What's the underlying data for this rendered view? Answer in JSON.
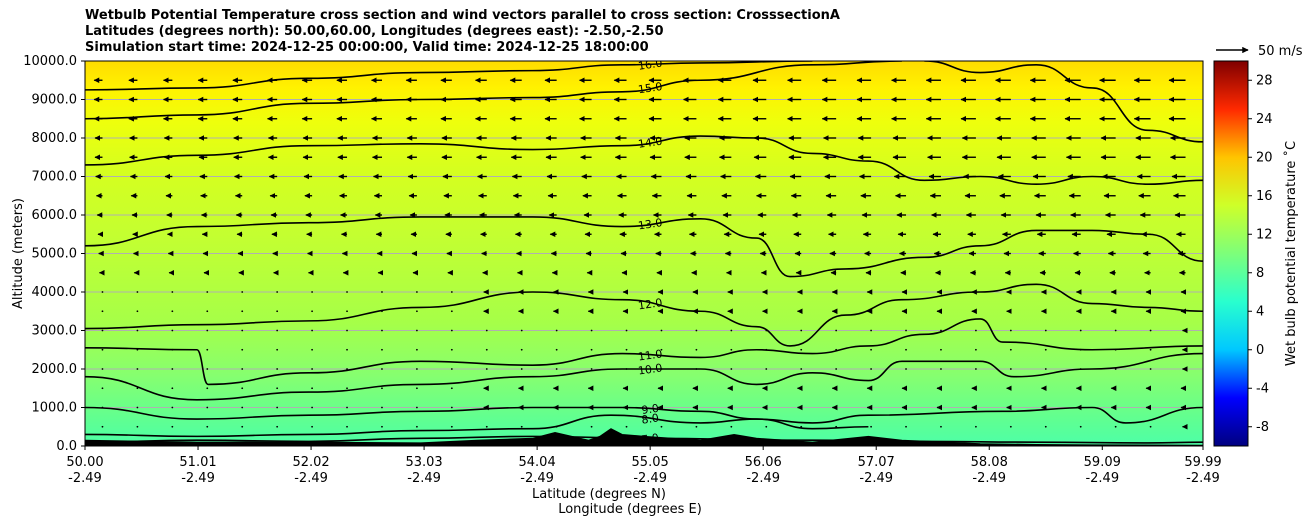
{
  "chart_data": {
    "type": "heatmap",
    "title_lines": [
      "Wetbulb Potential Temperature cross section and wind vectors parallel to cross section: CrosssectionA",
      "Latitudes (degrees north): 50.00,60.00, Longitudes (degrees east): -2.50,-2.50",
      "Simulation start time: 2024-12-25 00:00:00, Valid time: 2024-12-25 18:00:00"
    ],
    "xlabel_lat": "Latitude (degrees N)",
    "xlabel_lon": "Longitude (degrees E)",
    "ylabel": "Altitude (meters)",
    "x_ticks_lat": [
      "50.00",
      "51.01",
      "52.02",
      "53.03",
      "54.04",
      "55.05",
      "56.06",
      "57.07",
      "58.08",
      "59.09",
      "59.99"
    ],
    "x_ticks_lon": [
      "-2.49",
      "-2.49",
      "-2.49",
      "-2.49",
      "-2.49",
      "-2.49",
      "-2.49",
      "-2.49",
      "-2.49",
      "-2.49",
      "-2.49"
    ],
    "x_range": [
      50.0,
      59.99
    ],
    "y_ticks": [
      "0.0",
      "1000.0",
      "2000.0",
      "3000.0",
      "4000.0",
      "5000.0",
      "6000.0",
      "7000.0",
      "8000.0",
      "9000.0",
      "10000.0"
    ],
    "y_range": [
      0,
      10000
    ],
    "grid": "horizontal",
    "colorbar": {
      "label": "Wet bulb potential temperature ˚C",
      "ticks": [
        "-8",
        "-4",
        "0",
        "4",
        "8",
        "12",
        "16",
        "20",
        "24",
        "28"
      ],
      "range": [
        -10,
        30
      ]
    },
    "quiver_key": "50 m/s",
    "contour_labels": [
      "16.0",
      "15.0",
      "14.0",
      "13.0",
      "12.0",
      "11.0",
      "10.0",
      "9.0",
      "8.0",
      "7.0"
    ],
    "contours": [
      {
        "level": 16,
        "label": "16.0",
        "points": [
          [
            50.0,
            9250
          ],
          [
            51.0,
            9300
          ],
          [
            52.0,
            9550
          ],
          [
            53.0,
            9700
          ],
          [
            54.0,
            9750
          ],
          [
            54.8,
            9900
          ],
          [
            55.5,
            9950
          ],
          [
            56.5,
            10000
          ]
        ]
      },
      {
        "level": 15,
        "label": "15.0",
        "points": [
          [
            50.0,
            8500
          ],
          [
            51.0,
            8600
          ],
          [
            52.0,
            8900
          ],
          [
            53.0,
            9000
          ],
          [
            54.0,
            9050
          ],
          [
            54.8,
            9200
          ],
          [
            55.5,
            9500
          ],
          [
            56.5,
            9900
          ],
          [
            57.3,
            10000
          ]
        ]
      },
      {
        "level": 15,
        "label": "15.0",
        "points": [
          [
            57.5,
            10000
          ],
          [
            58.0,
            9700
          ],
          [
            58.5,
            9900
          ],
          [
            59.0,
            9300
          ],
          [
            59.5,
            8200
          ],
          [
            59.99,
            7900
          ]
        ]
      },
      {
        "level": 14,
        "label": "14.0",
        "points": [
          [
            50.0,
            7300
          ],
          [
            51.0,
            7550
          ],
          [
            52.0,
            7800
          ],
          [
            53.0,
            7850
          ],
          [
            54.0,
            7700
          ],
          [
            54.8,
            7800
          ],
          [
            55.5,
            8050
          ],
          [
            56.0,
            8000
          ],
          [
            56.5,
            7600
          ],
          [
            57.0,
            7400
          ],
          [
            57.5,
            6900
          ],
          [
            58.0,
            7000
          ],
          [
            58.5,
            6800
          ],
          [
            59.0,
            7000
          ],
          [
            59.5,
            6800
          ],
          [
            59.99,
            6900
          ]
        ]
      },
      {
        "level": 13,
        "label": "13.0",
        "points": [
          [
            50.0,
            5200
          ],
          [
            51.0,
            5700
          ],
          [
            52.0,
            5800
          ],
          [
            53.0,
            5950
          ],
          [
            54.0,
            5950
          ],
          [
            54.8,
            5700
          ],
          [
            55.5,
            5900
          ],
          [
            56.0,
            5400
          ],
          [
            56.3,
            4400
          ],
          [
            56.8,
            4600
          ],
          [
            57.5,
            4900
          ],
          [
            58.0,
            5200
          ],
          [
            58.5,
            5600
          ],
          [
            59.0,
            5600
          ],
          [
            59.5,
            5500
          ],
          [
            59.99,
            4800
          ]
        ]
      },
      {
        "level": 12,
        "label": "12.0",
        "points": [
          [
            50.0,
            3050
          ],
          [
            51.0,
            3150
          ],
          [
            52.0,
            3250
          ],
          [
            53.0,
            3600
          ],
          [
            54.0,
            4000
          ],
          [
            54.8,
            3800
          ],
          [
            55.5,
            3500
          ],
          [
            56.0,
            3100
          ],
          [
            56.3,
            2600
          ],
          [
            56.8,
            3400
          ],
          [
            57.3,
            3800
          ],
          [
            58.0,
            4000
          ],
          [
            58.5,
            4200
          ],
          [
            59.0,
            3700
          ],
          [
            59.5,
            3600
          ],
          [
            59.99,
            3500
          ]
        ]
      },
      {
        "level": 11,
        "label": "11.0",
        "points": [
          [
            50.0,
            2550
          ],
          [
            51.0,
            2500
          ],
          [
            51.1,
            1600
          ],
          [
            52.0,
            1900
          ],
          [
            53.0,
            2200
          ],
          [
            54.0,
            2100
          ],
          [
            54.8,
            2400
          ],
          [
            55.5,
            2300
          ],
          [
            56.0,
            2500
          ],
          [
            56.5,
            2400
          ],
          [
            57.0,
            2600
          ],
          [
            57.5,
            2900
          ],
          [
            58.0,
            3300
          ],
          [
            58.2,
            2700
          ],
          [
            59.0,
            2500
          ],
          [
            59.99,
            2600
          ]
        ]
      },
      {
        "level": 10,
        "label": "10.0",
        "points": [
          [
            50.0,
            1800
          ],
          [
            51.0,
            1200
          ],
          [
            52.0,
            1400
          ],
          [
            53.0,
            1600
          ],
          [
            54.0,
            1800
          ],
          [
            54.8,
            2000
          ],
          [
            55.5,
            2000
          ],
          [
            56.0,
            1600
          ],
          [
            56.5,
            1900
          ],
          [
            57.0,
            1700
          ],
          [
            57.3,
            2200
          ],
          [
            58.0,
            2200
          ],
          [
            58.3,
            1800
          ],
          [
            59.0,
            2000
          ],
          [
            59.99,
            2400
          ]
        ]
      },
      {
        "level": 9,
        "label": "9.0",
        "points": [
          [
            50.0,
            1000
          ],
          [
            51.0,
            700
          ],
          [
            52.0,
            800
          ],
          [
            53.0,
            900
          ],
          [
            54.0,
            1000
          ],
          [
            54.8,
            1000
          ],
          [
            55.5,
            900
          ],
          [
            56.0,
            700
          ],
          [
            56.5,
            600
          ],
          [
            57.0,
            800
          ],
          [
            58.2,
            900
          ],
          [
            59.0,
            1000
          ],
          [
            59.3,
            600
          ],
          [
            59.99,
            1000
          ]
        ]
      },
      {
        "level": 8,
        "label": "8.0",
        "points": [
          [
            50.0,
            300
          ],
          [
            51.0,
            250
          ],
          [
            52.0,
            300
          ],
          [
            53.0,
            400
          ],
          [
            54.0,
            450
          ],
          [
            54.7,
            800
          ],
          [
            55.5,
            600
          ],
          [
            56.0,
            700
          ],
          [
            56.5,
            450
          ],
          [
            57.0,
            500
          ]
        ]
      },
      {
        "level": 7,
        "label": "7.0",
        "points": [
          [
            50.0,
            100
          ],
          [
            51.0,
            150
          ],
          [
            52.0,
            120
          ],
          [
            53.0,
            200
          ],
          [
            54.0,
            250
          ],
          [
            55.0,
            200
          ],
          [
            56.5,
            150
          ],
          [
            57.5,
            120
          ],
          [
            58.5,
            100
          ],
          [
            59.5,
            80
          ],
          [
            59.99,
            100
          ]
        ]
      }
    ],
    "wind_u_mps": [
      -5,
      -5,
      -5,
      -6,
      -8,
      -9,
      -10,
      -11,
      -11,
      -11,
      -11
    ],
    "wind_altitudes_m": [
      9500,
      9000,
      8500,
      8000,
      7500,
      7000,
      6500,
      6000,
      5500,
      5000,
      4500,
      4000,
      3500,
      3000,
      2500,
      2000,
      1500,
      1000,
      500
    ],
    "wind_u_by_altitude_mps": [
      -11,
      -11,
      -11,
      -10,
      -10,
      -9,
      -8,
      -7,
      -6,
      -5,
      -4,
      -3,
      -3,
      -2,
      -2,
      -2,
      -3,
      -3,
      -2
    ],
    "terrain_altitude_m": [
      [
        50.0,
        150
      ],
      [
        51.0,
        100
      ],
      [
        52.0,
        100
      ],
      [
        53.0,
        80
      ],
      [
        53.5,
        150
      ],
      [
        54.0,
        200
      ],
      [
        54.2,
        350
      ],
      [
        54.5,
        150
      ],
      [
        54.6,
        250
      ],
      [
        54.7,
        450
      ],
      [
        54.8,
        300
      ],
      [
        55.0,
        250
      ],
      [
        55.5,
        150
      ],
      [
        55.8,
        300
      ],
      [
        56.0,
        200
      ],
      [
        56.5,
        100
      ],
      [
        57.0,
        250
      ],
      [
        57.3,
        150
      ],
      [
        57.7,
        100
      ],
      [
        58.0,
        60
      ],
      [
        58.5,
        40
      ],
      [
        59.0,
        30
      ],
      [
        59.99,
        20
      ]
    ]
  }
}
